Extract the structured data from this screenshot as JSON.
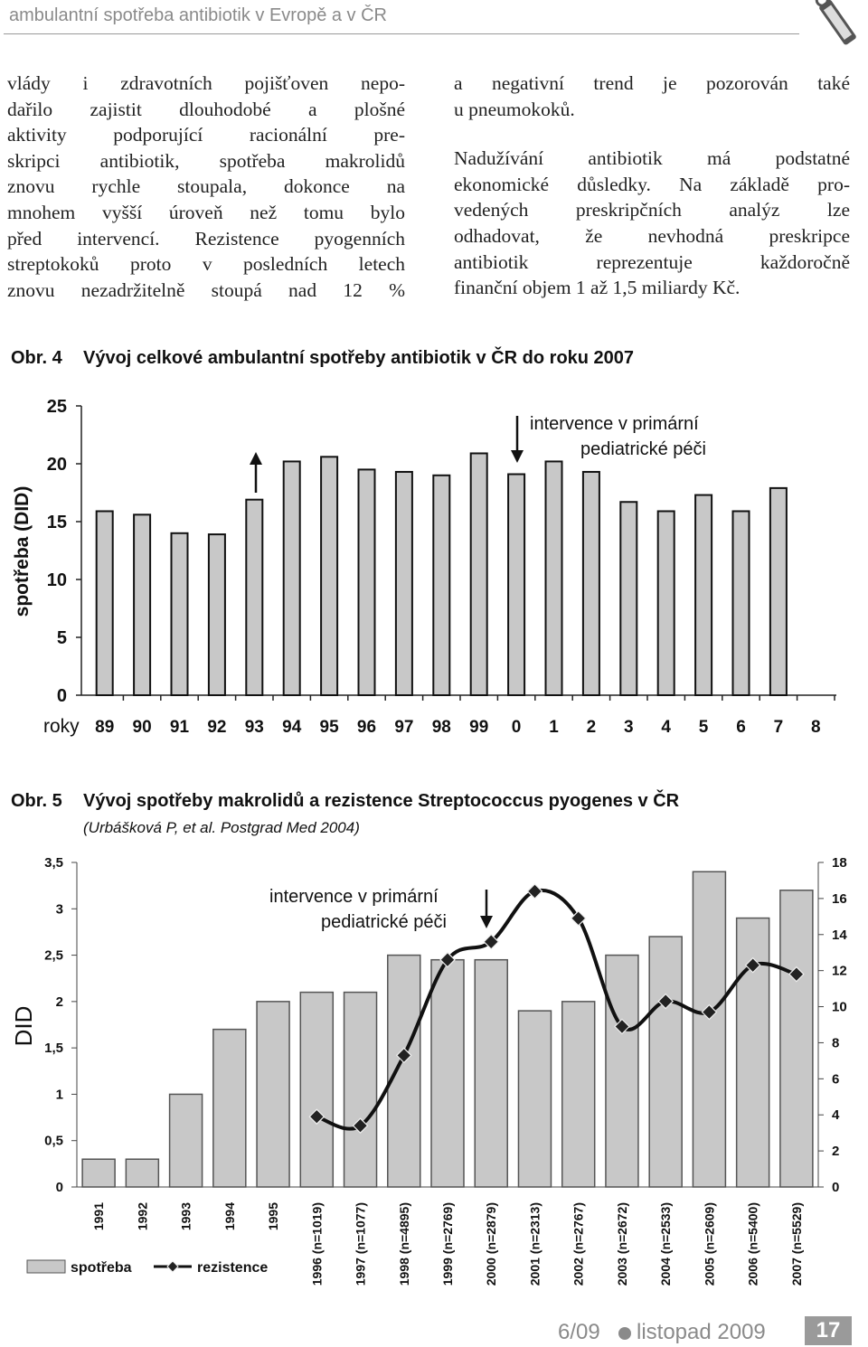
{
  "header": {
    "running_title": "ambulantní spotřeba antibiotik v Evropě a v ČR"
  },
  "body": {
    "left": [
      "vlády i zdravotních pojišťoven nepo-",
      "dařilo zajistit dlouhodobé a plošné",
      "aktivity podporující racionální pre-",
      "skripci antibiotik, spotřeba makrolidů",
      "znovu rychle stoupala, dokonce na",
      "mnohem vyšší úroveň než tomu bylo",
      "před intervencí. Rezistence pyogenních",
      "streptokoků proto v posledních letech",
      "znovu nezadržitelně stoupá nad 12 %"
    ],
    "right": [
      [
        "a negativní trend je pozorován také",
        "u pneumokoků."
      ],
      [
        "Nadužívání antibiotik má podstatné",
        "ekonomické důsledky. Na základě pro-",
        "vedených preskripčních analýz lze",
        "odhadovat, že nevhodná preskripce",
        "antibiotik reprezentuje každoročně",
        "finanční objem 1 až 1,5 miliardy Kč."
      ]
    ]
  },
  "chart_data": [
    {
      "type": "bar",
      "label": "Obr. 4",
      "title": "Vývoj celkové ambulantní spotřeby antibiotik v ČR do roku 2007",
      "ylabel": "spotřeba (DID)",
      "xlabel": "roky",
      "annotation": [
        "intervence v primární",
        "pediatrické péči"
      ],
      "categories": [
        "89",
        "90",
        "91",
        "92",
        "93",
        "94",
        "95",
        "96",
        "97",
        "98",
        "99",
        "0",
        "1",
        "2",
        "3",
        "4",
        "5",
        "6",
        "7",
        "8"
      ],
      "values": [
        15.9,
        15.6,
        14.0,
        13.9,
        16.9,
        20.2,
        20.6,
        19.5,
        19.3,
        19.0,
        20.9,
        19.1,
        20.2,
        19.3,
        16.7,
        15.9,
        17.3,
        15.9,
        17.9,
        null
      ],
      "color": "#c8c8c8",
      "ylim": [
        0,
        25
      ],
      "yticks": [
        0,
        5,
        10,
        15,
        20,
        25
      ]
    },
    {
      "type": "combo",
      "label": "Obr. 5",
      "title": "Vývoj spotřeby makrolidů a rezistence Streptococcus pyogenes v ČR",
      "subtitle": "(Urbášková P, et al. Postgrad Med 2004)",
      "ylabel": "DID",
      "annotation": [
        "intervence v primární",
        "pediatrické péči"
      ],
      "categories": [
        "1991",
        "1992",
        "1993",
        "1994",
        "1995",
        "1996 (n=1019)",
        "1997 (n=1077)",
        "1998 (n=4895)",
        "1999 (n=2769)",
        "2000 (n=2879)",
        "2001 (n=2313)",
        "2002 (n=2767)",
        "2003 (n=2672)",
        "2004 (n=2533)",
        "2005 (n=2609)",
        "2006 (n=5400)",
        "2007 (n=5529)"
      ],
      "series": [
        {
          "name": "spotřeba",
          "type": "bar",
          "color": "#c8c8c8",
          "values": [
            0.3,
            0.3,
            1.0,
            1.7,
            2.0,
            2.1,
            2.1,
            2.5,
            2.45,
            2.45,
            1.9,
            2.0,
            2.5,
            2.7,
            3.4,
            2.9,
            3.2
          ]
        },
        {
          "name": "rezistence",
          "type": "line",
          "axis": "y2",
          "color": "#111111",
          "values": [
            null,
            null,
            null,
            null,
            null,
            3.9,
            3.4,
            7.3,
            12.6,
            13.6,
            16.4,
            14.9,
            8.9,
            10.3,
            9.7,
            12.3,
            11.8
          ]
        }
      ],
      "ylim": [
        0,
        3.5
      ],
      "yticks": [
        0,
        {
          "value": 0.5,
          "label": "0,5"
        },
        1,
        {
          "value": 1.5,
          "label": "1,5"
        },
        2,
        {
          "value": 2.5,
          "label": "2,5"
        },
        3,
        {
          "value": 3.5,
          "label": "3,5"
        }
      ],
      "y2lim": [
        0,
        18
      ],
      "y2ticks": [
        0,
        2,
        4,
        6,
        8,
        10,
        12,
        14,
        16,
        18
      ],
      "legend": "bottom-left"
    }
  ],
  "footer": {
    "issue": "6/09",
    "date": "listopad 2009",
    "page": "17"
  }
}
